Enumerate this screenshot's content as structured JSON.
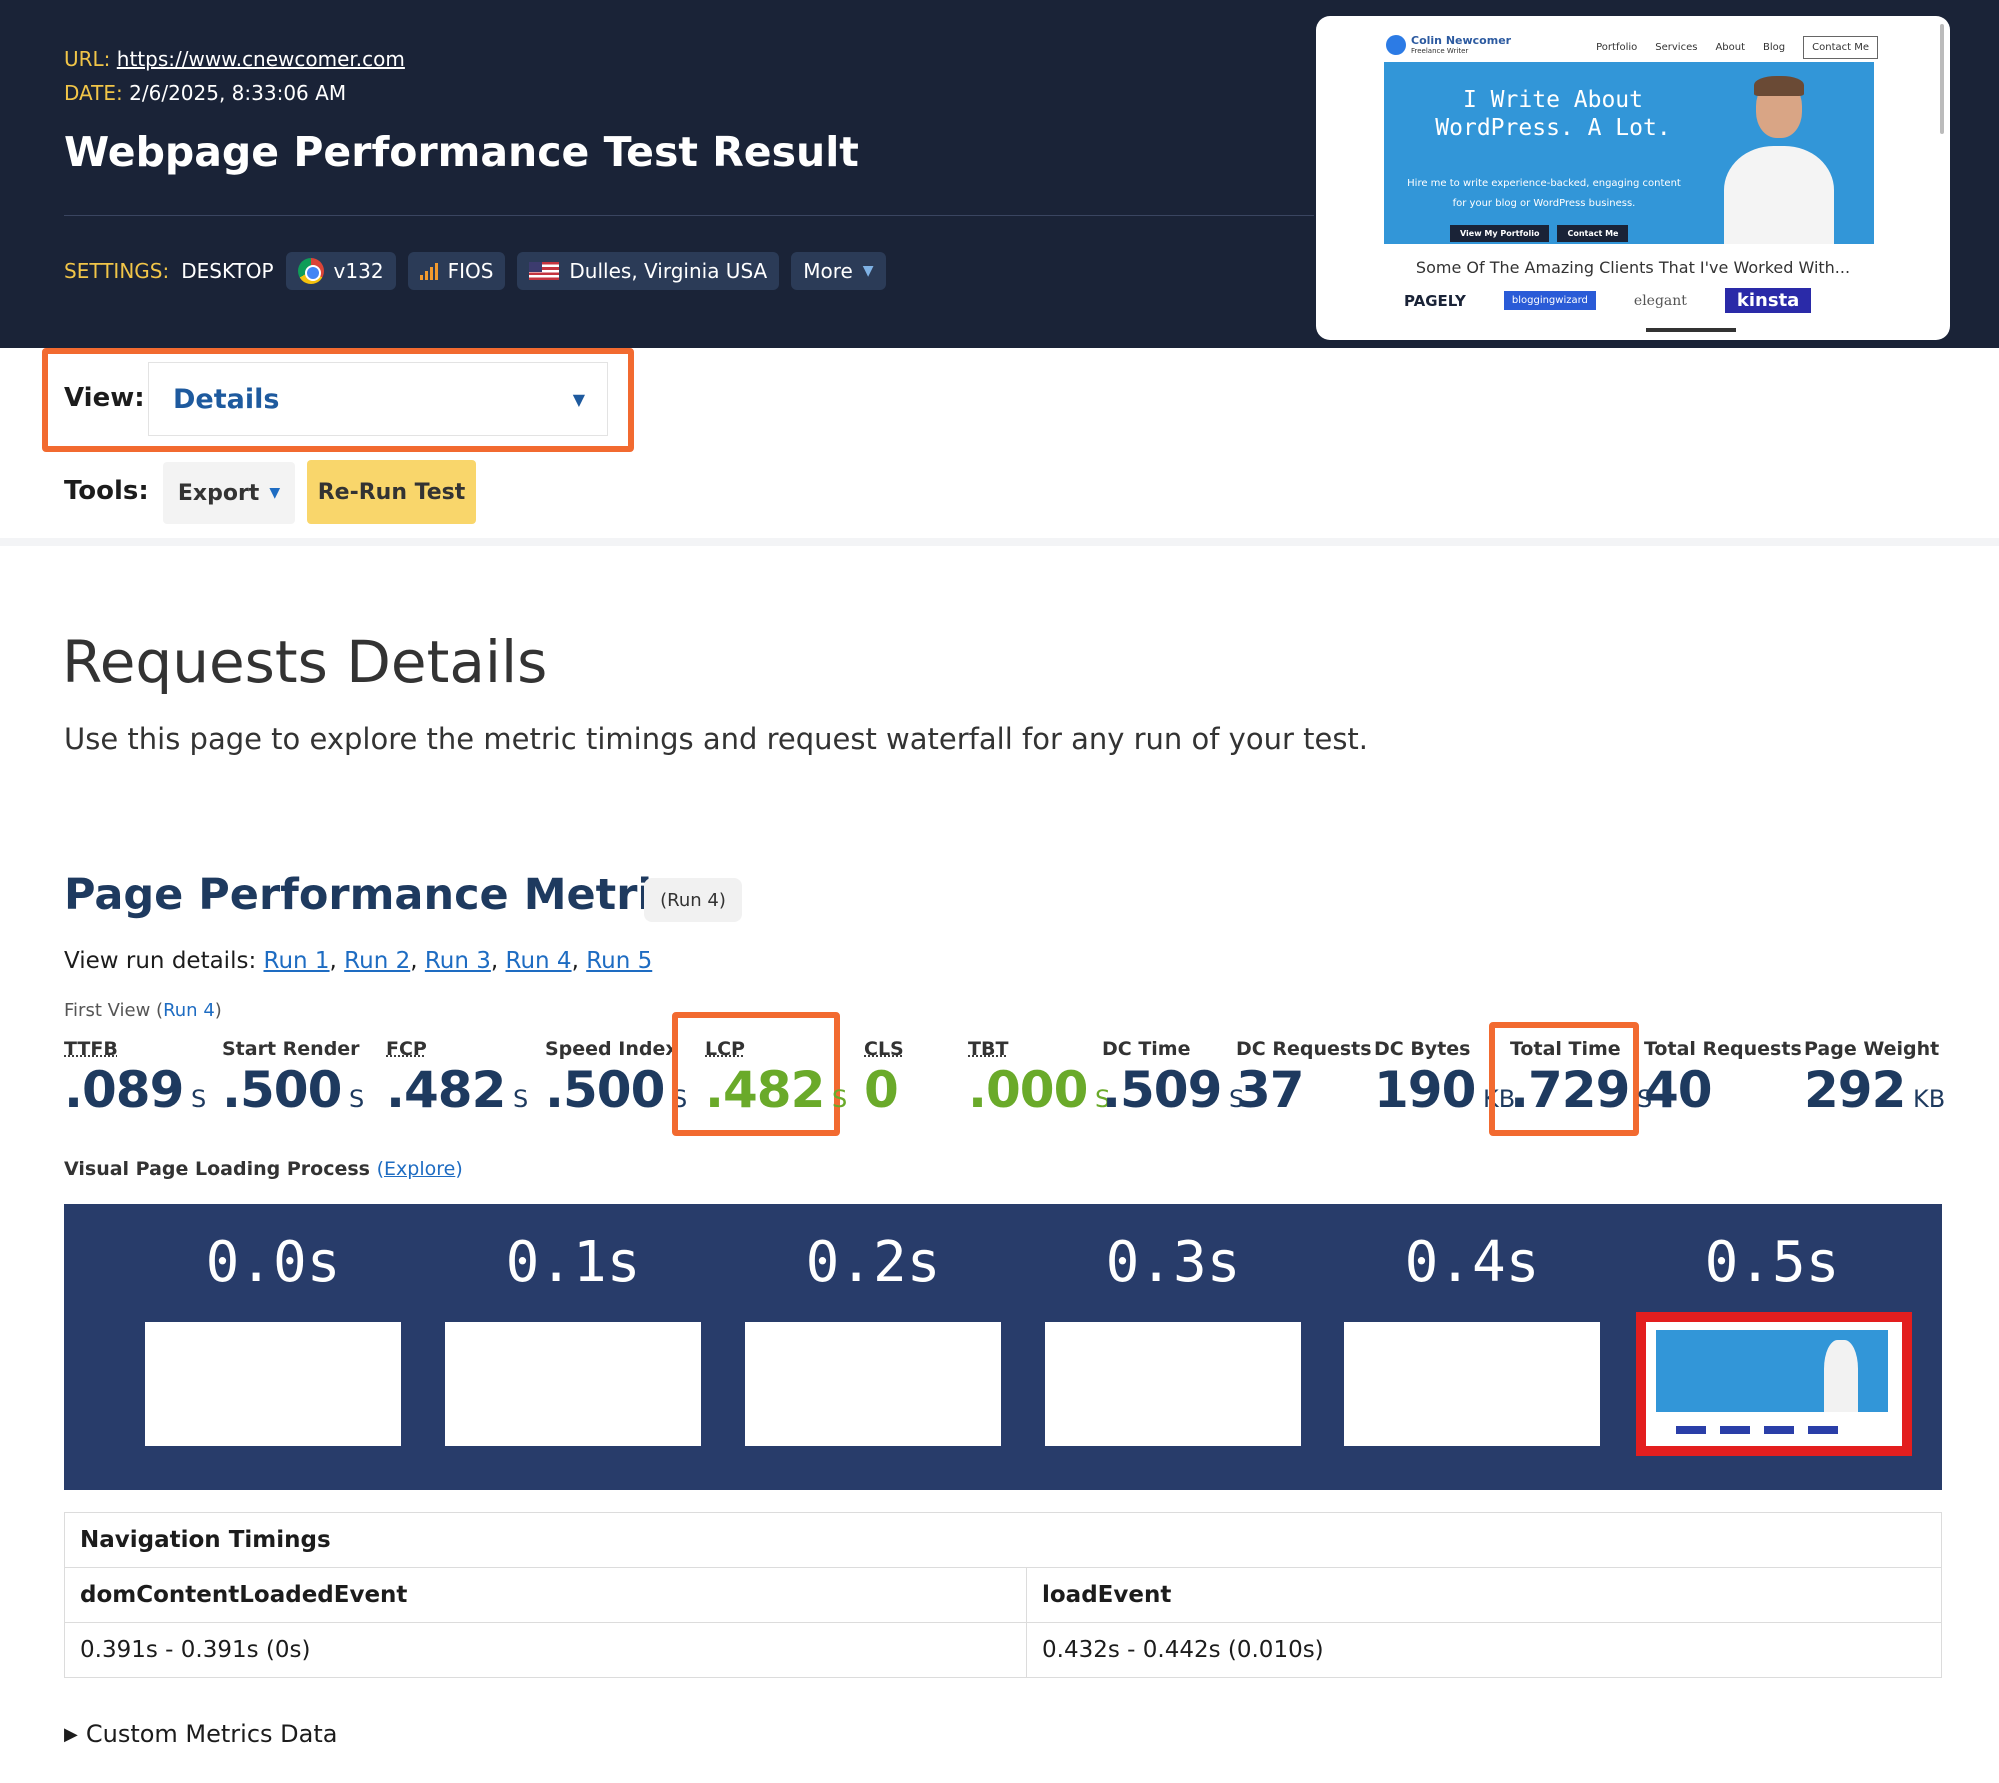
{
  "header": {
    "url_label": "URL:",
    "url": "https://www.cnewcomer.com",
    "date_label": "DATE:",
    "date": "2/6/2025, 8:33:06 AM",
    "title": "Webpage Performance Test Result",
    "settings_label": "SETTINGS:",
    "device": "DESKTOP",
    "browser": "v132",
    "connection": "FIOS",
    "location": "Dulles, Virginia USA",
    "more": "More"
  },
  "thumbnail": {
    "logo_name": "Colin Newcomer",
    "logo_sub": "Freelance Writer",
    "nav": [
      "Portfolio",
      "Services",
      "About",
      "Blog",
      "Contact Me"
    ],
    "headline": "I Write About WordPress. A Lot.",
    "subtext": "Hire me to write experience-backed, engaging content for your blog or WordPress business.",
    "btn1": "View My Portfolio",
    "btn2": "Contact Me",
    "clients": "Some Of The Amazing Clients That I've Worked With...",
    "logos": [
      "PAGELY",
      "bloggingwizard",
      "elegant",
      "kinsta"
    ]
  },
  "view": {
    "label": "View:",
    "selected": "Details"
  },
  "tools": {
    "label": "Tools:",
    "export": "Export",
    "rerun": "Re-Run Test"
  },
  "requests": {
    "title": "Requests Details",
    "description": "Use this page to explore the metric timings and request waterfall for any run of your test."
  },
  "metrics": {
    "title": "Page Performance Metrics",
    "run_badge": "(Run 4)",
    "runs_prefix": "View run details:",
    "runs": [
      "Run 1",
      "Run 2",
      "Run 3",
      "Run 4",
      "Run 5"
    ],
    "first_view": "First View",
    "first_view_run": "Run 4",
    "items": [
      {
        "label": "TTFB",
        "value": ".089",
        "unit": "S"
      },
      {
        "label": "Start Render",
        "value": ".500",
        "unit": "S"
      },
      {
        "label": "FCP",
        "value": ".482",
        "unit": "S"
      },
      {
        "label": "Speed Index",
        "value": ".500",
        "unit": "S"
      },
      {
        "label": "LCP",
        "value": ".482",
        "unit": "S"
      },
      {
        "label": "CLS",
        "value": "0",
        "unit": ""
      },
      {
        "label": "TBT",
        "value": ".000",
        "unit": "S"
      },
      {
        "label": "DC Time",
        "value": ".509",
        "unit": "S"
      },
      {
        "label": "DC Requests",
        "value": "37",
        "unit": ""
      },
      {
        "label": "DC Bytes",
        "value": "190",
        "unit": "KB"
      },
      {
        "label": "Total Time",
        "value": ".729",
        "unit": "S"
      },
      {
        "label": "Total Requests",
        "value": "40",
        "unit": ""
      },
      {
        "label": "Page Weight",
        "value": "292",
        "unit": "KB"
      }
    ]
  },
  "visual": {
    "label": "Visual Page Loading Process",
    "explore": "Explore",
    "frames": [
      "0.0s",
      "0.1s",
      "0.2s",
      "0.3s",
      "0.4s",
      "0.5s"
    ]
  },
  "nav_timings": {
    "title": "Navigation Timings",
    "col1": "domContentLoadedEvent",
    "col2": "loadEvent",
    "val1": "0.391s - 0.391s (0s)",
    "val2": "0.432s - 0.442s (0.010s)"
  },
  "custom_metrics": "Custom Metrics Data",
  "colors": {
    "accent_orange": "#f26a30",
    "navy": "#1a2337",
    "good_green": "#6aaa2a",
    "link_blue": "#1e6cc2"
  }
}
